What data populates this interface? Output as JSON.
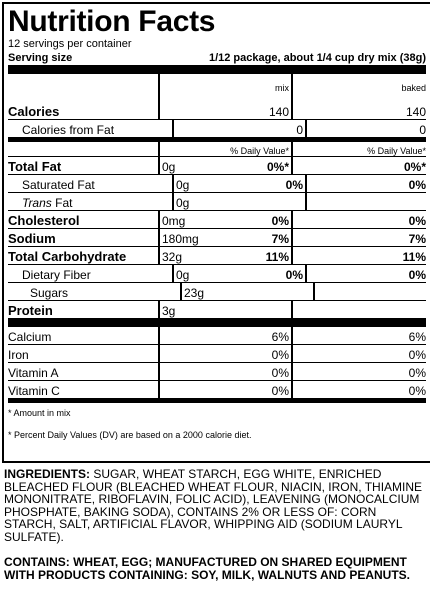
{
  "title": "Nutrition Facts",
  "servings_per_container": "12 servings per container",
  "serving_size_label": "Serving size",
  "serving_size_value": "1/12 package, about 1/4 cup dry mix (38g)",
  "columns": {
    "mix": "mix",
    "baked": "baked"
  },
  "calories": {
    "label": "Calories",
    "mix": "140",
    "baked": "140"
  },
  "calories_from_fat": {
    "label": "Calories from Fat",
    "mix": "0",
    "baked": "0"
  },
  "dv_header": {
    "mix": "% Daily Value*",
    "baked": "% Daily Value*"
  },
  "nutrients": [
    {
      "label": "Total Fat",
      "amount": "0g",
      "dv_mix": "0%*",
      "dv_baked": "0%*",
      "bold": true
    },
    {
      "label": "Saturated Fat",
      "amount": "0g",
      "dv_mix": "0%",
      "dv_baked": "0%",
      "bold": false
    },
    {
      "label_italic": "Trans",
      "label": " Fat",
      "amount": "0g",
      "dv_mix": "",
      "dv_baked": "",
      "bold": false
    },
    {
      "label": "Cholesterol",
      "amount": "0mg",
      "dv_mix": "0%",
      "dv_baked": "0%",
      "bold": true
    },
    {
      "label": "Sodium",
      "amount": "180mg",
      "dv_mix": "7%",
      "dv_baked": "7%",
      "bold": true
    },
    {
      "label": "Total Carbohydrate",
      "amount": "32g",
      "dv_mix": "11%",
      "dv_baked": "11%",
      "bold": true
    },
    {
      "label": "Dietary Fiber",
      "amount": "0g",
      "dv_mix": "0%",
      "dv_baked": "0%",
      "bold": false
    },
    {
      "label": "Sugars",
      "amount": "23g",
      "dv_mix": "",
      "dv_baked": "",
      "bold": false
    },
    {
      "label": "Protein",
      "amount": "3g",
      "dv_mix": "",
      "dv_baked": "",
      "bold": true
    }
  ],
  "vitamins": [
    {
      "label": "Calcium",
      "mix": "6%",
      "baked": "6%"
    },
    {
      "label": "Iron",
      "mix": "0%",
      "baked": "0%"
    },
    {
      "label": "Vitamin A",
      "mix": "0%",
      "baked": "0%"
    },
    {
      "label": "Vitamin C",
      "mix": "0%",
      "baked": "0%"
    }
  ],
  "footnote_1": "* Amount in mix",
  "footnote_2": "* Percent Daily Values (DV) are based on a 2000 calorie diet.",
  "ingredients_label": "INGREDIENTS:",
  "ingredients_text": " SUGAR, WHEAT STARCH, EGG WHITE, ENRICHED BLEACHED FLOUR (BLEACHED WHEAT FLOUR, NIACIN, IRON, THIAMINE MONONITRATE, RIBOFLAVIN, FOLIC ACID), LEAVENING (MONOCALCIUM PHOSPHATE, BAKING SODA), CONTAINS 2% OR LESS OF: CORN STARCH, SALT, ARTIFICIAL FLAVOR, WHIPPING AID (SODIUM LAURYL SULFATE).",
  "contains_text": "CONTAINS: WHEAT, EGG; MANUFACTURED ON SHARED EQUIPMENT WITH PRODUCTS CONTAINING: SOY, MILK, WALNUTS AND PEANUTS."
}
